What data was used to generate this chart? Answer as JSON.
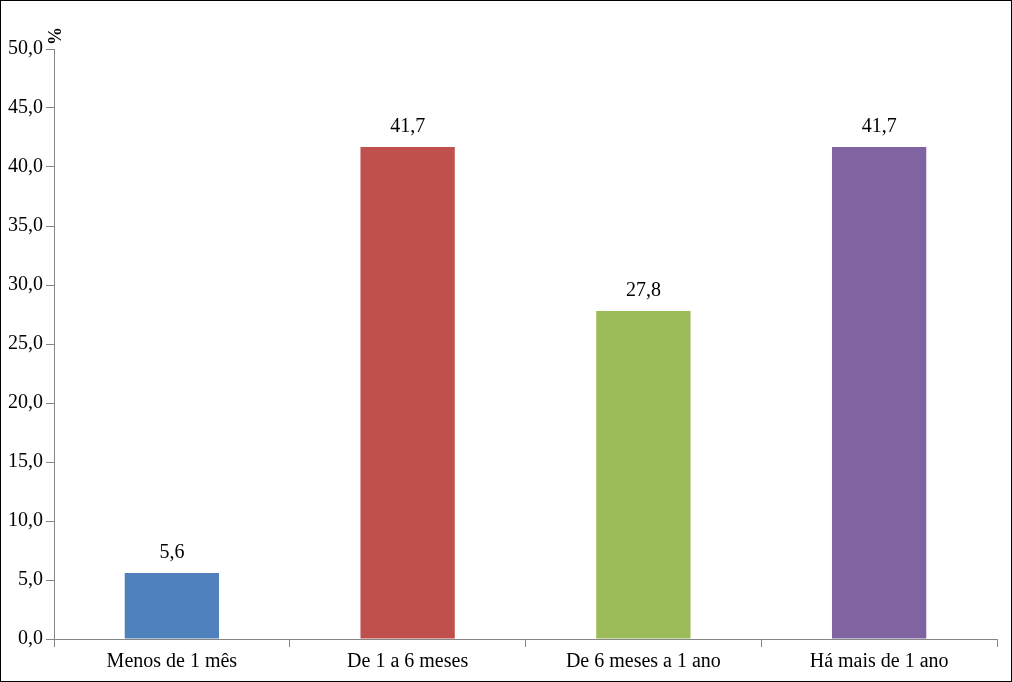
{
  "chart_data": {
    "type": "bar",
    "ylabel": "%",
    "categories": [
      "Menos de 1 mês",
      "De 1 a 6 meses",
      "De 6 meses a 1 ano",
      "Há mais de 1 ano"
    ],
    "values": [
      5.6,
      41.7,
      27.8,
      41.7
    ],
    "colors": [
      "#4f81bd",
      "#c0504d",
      "#9bbb59",
      "#8064a2"
    ],
    "value_labels": [
      "5,6",
      "41,7",
      "27,8",
      "41,7"
    ],
    "ylim": [
      0,
      50
    ],
    "yticks": [
      {
        "value": 0,
        "label": "0,0"
      },
      {
        "value": 5,
        "label": "5,0"
      },
      {
        "value": 10,
        "label": "10,0"
      },
      {
        "value": 15,
        "label": "15,0"
      },
      {
        "value": 20,
        "label": "20,0"
      },
      {
        "value": 25,
        "label": "25,0"
      },
      {
        "value": 30,
        "label": "30,0"
      },
      {
        "value": 35,
        "label": "35,0"
      },
      {
        "value": 40,
        "label": "40,0"
      },
      {
        "value": 45,
        "label": "45,0"
      },
      {
        "value": 50,
        "label": "50,0"
      }
    ],
    "grid": false,
    "legend": false
  }
}
